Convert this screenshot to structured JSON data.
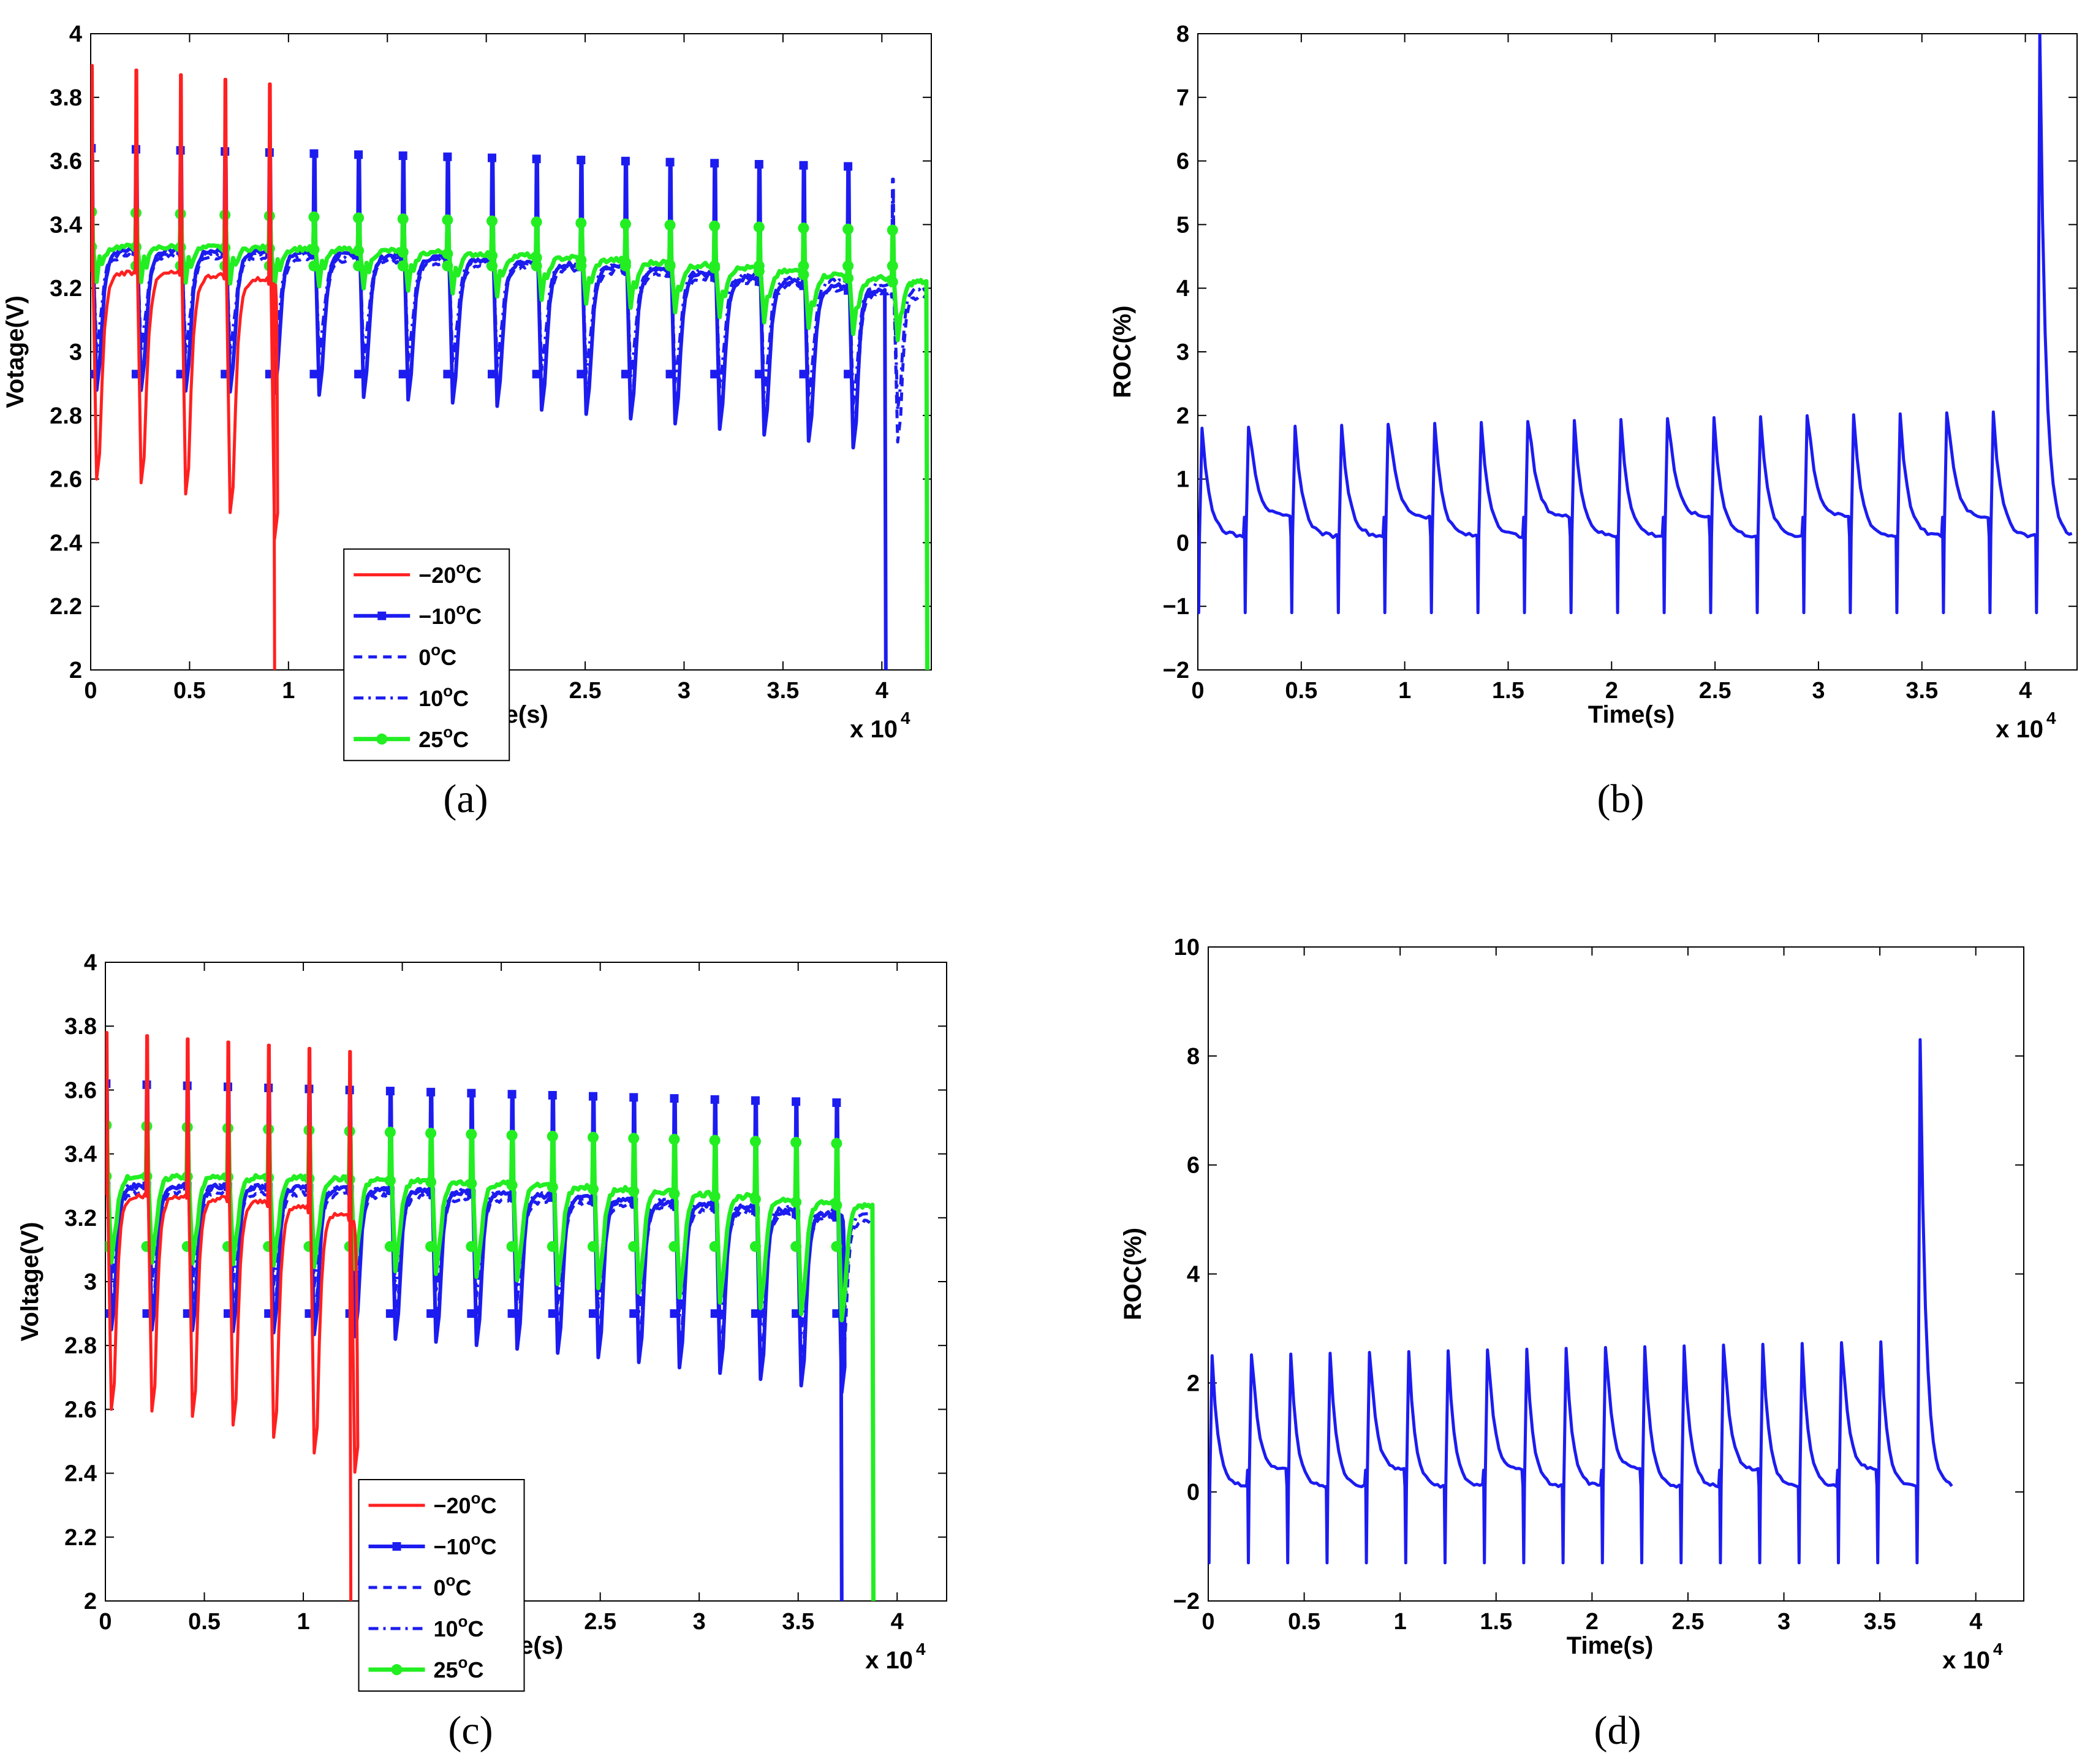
{
  "colors": {
    "minus20": "#ff2020",
    "minus10": "#1c1cf0",
    "zero": "#1c1cf0",
    "ten": "#1c1cf0",
    "twentyfive": "#22ee22",
    "roc": "#1c1cf0"
  },
  "chart_data": [
    {
      "id": "a",
      "type": "line",
      "caption": "(a)",
      "xlabel": "Time(s)",
      "ylabel": "Votage(V)",
      "x_multiplier": "x 10",
      "x_multiplier_exp": "4",
      "xlim": [
        0,
        4.25
      ],
      "ylim": [
        2,
        4
      ],
      "xticks": [
        "0",
        "0.5",
        "1",
        "1.5",
        "2",
        "2.5",
        "3",
        "3.5",
        "4"
      ],
      "yticks": [
        "2",
        "2.2",
        "2.4",
        "2.6",
        "2.8",
        "3",
        "3.2",
        "3.4",
        "3.6",
        "3.8",
        "4"
      ],
      "legend": [
        "−20",
        "−10",
        "0",
        "10",
        "25"
      ],
      "legend_unit": "C",
      "legend_sup": "o",
      "legend_position": "lower-center",
      "series": [
        {
          "name": "-20°C",
          "period": 0.225,
          "end": 0.93,
          "base": 3.25,
          "drift": 0.04,
          "peak": 3.9,
          "dip": 2.6
        },
        {
          "name": "-10°C",
          "period": 0.225,
          "end": 4.02,
          "base": 3.32,
          "drift": 0.14,
          "peak": 3.64,
          "dip": 2.88
        },
        {
          "name": "0°C",
          "period": 0.225,
          "end": 4.23,
          "base": 3.3,
          "drift": 0.14,
          "peak": 3.6,
          "dip": 2.9
        },
        {
          "name": "10°C",
          "period": 0.225,
          "end": 4.23,
          "base": 3.31,
          "drift": 0.12,
          "peak": 3.55,
          "dip": 3.0
        },
        {
          "name": "25°C",
          "period": 0.225,
          "end": 4.23,
          "base": 3.33,
          "drift": 0.12,
          "peak": 3.44,
          "dip": 3.22
        }
      ]
    },
    {
      "id": "b",
      "type": "line",
      "caption": "(b)",
      "xlabel": "Time(s)",
      "ylabel": "ROC(%)",
      "x_multiplier": "x 10",
      "x_multiplier_exp": "4",
      "xlim": [
        0,
        4.25
      ],
      "ylim": [
        -2,
        8
      ],
      "xticks": [
        "0",
        "0.5",
        "1",
        "1.5",
        "2",
        "2.5",
        "3",
        "3.5",
        "4"
      ],
      "yticks": [
        "−2",
        "−1",
        "0",
        "1",
        "2",
        "3",
        "4",
        "5",
        "6",
        "7",
        "8"
      ],
      "series": [
        {
          "name": "ROC",
          "period": 0.225,
          "end": 4.23,
          "base": 0.1,
          "peak": 1.8,
          "dip": -1.1,
          "final_peak": 8.0
        }
      ]
    },
    {
      "id": "c",
      "type": "line",
      "caption": "(c)",
      "xlabel": "Time(s)",
      "ylabel": "Voltage(V)",
      "x_multiplier": "x 10",
      "x_multiplier_exp": "4",
      "xlim": [
        0,
        4.25
      ],
      "ylim": [
        2,
        4
      ],
      "xticks": [
        "0",
        "0.5",
        "1",
        "1.5",
        "2",
        "2.5",
        "3",
        "3.5",
        "4"
      ],
      "yticks": [
        "2",
        "2.2",
        "2.4",
        "2.6",
        "2.8",
        "3",
        "3.2",
        "3.4",
        "3.6",
        "3.8",
        "4"
      ],
      "legend": [
        "−20",
        "−10",
        "0",
        "10",
        "25"
      ],
      "legend_unit": "C",
      "legend_sup": "o",
      "legend_position": "lower-center",
      "series": [
        {
          "name": "-20°C",
          "period": 0.205,
          "end": 1.24,
          "base": 3.27,
          "drift": 0.08,
          "peak": 3.78,
          "dip": 2.6
        },
        {
          "name": "-10°C",
          "period": 0.205,
          "end": 3.72,
          "base": 3.3,
          "drift": 0.1,
          "peak": 3.62,
          "dip": 2.85
        },
        {
          "name": "0°C",
          "period": 0.205,
          "end": 3.88,
          "base": 3.28,
          "drift": 0.1,
          "peak": 3.6,
          "dip": 2.9
        },
        {
          "name": "10°C",
          "period": 0.205,
          "end": 3.88,
          "base": 3.3,
          "drift": 0.1,
          "peak": 3.55,
          "dip": 3.0
        },
        {
          "name": "25°C",
          "period": 0.205,
          "end": 3.88,
          "base": 3.33,
          "drift": 0.1,
          "peak": 3.49,
          "dip": 3.06
        }
      ]
    },
    {
      "id": "d",
      "type": "line",
      "caption": "(d)",
      "xlabel": "Time(s)",
      "ylabel": "ROC(%)",
      "x_multiplier": "x 10",
      "x_multiplier_exp": "4",
      "xlim": [
        0,
        4.25
      ],
      "ylim": [
        -2,
        10
      ],
      "xticks": [
        "0",
        "0.5",
        "1",
        "1.5",
        "2",
        "2.5",
        "3",
        "3.5",
        "4"
      ],
      "yticks": [
        "−2",
        "0",
        "2",
        "4",
        "6",
        "8",
        "10"
      ],
      "series": [
        {
          "name": "ROC",
          "period": 0.205,
          "end": 3.88,
          "base": 0.1,
          "peak": 2.5,
          "dip": -1.3,
          "final_peak": 8.3
        }
      ]
    }
  ]
}
